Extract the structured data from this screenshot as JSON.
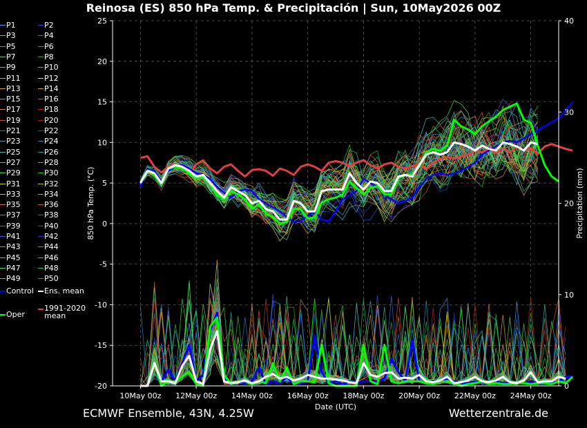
{
  "title": "Reinosa  (ES)  850 hPa Temp. & Precipitación | Sun, 10May2026 00Z",
  "footer": {
    "left": "ECMWF Ensemble, 43N, 4.25W",
    "right": "Wetterzentrale.de"
  },
  "legend": {
    "members": [
      "P1",
      "P2",
      "P3",
      "P4",
      "P5",
      "P6",
      "P7",
      "P8",
      "P9",
      "P10",
      "P11",
      "P12",
      "P13",
      "P14",
      "P15",
      "P16",
      "P17",
      "P18",
      "P19",
      "P20",
      "P21",
      "P22",
      "P23",
      "P24",
      "P25",
      "P26",
      "P27",
      "P28",
      "P29",
      "P30",
      "P31",
      "P32",
      "P33",
      "P34",
      "P35",
      "P36",
      "P37",
      "P38",
      "P39",
      "P40",
      "P41",
      "P42",
      "P43",
      "P44",
      "P45",
      "P46",
      "P47",
      "P48",
      "P49",
      "P50"
    ],
    "member_colors": [
      "#3fa0ff",
      "#3050ff",
      "#40c8c8",
      "#3080c0",
      "#20c8a0",
      "#20c040",
      "#60d060",
      "#40b040",
      "#40e040",
      "#30d030",
      "#c0c020",
      "#e0e040",
      "#e0a020",
      "#d0a040",
      "#e08030",
      "#d06020",
      "#e07050",
      "#c03020",
      "#d05030",
      "#b02020",
      "#3070e0",
      "#2050d0",
      "#40a0c0",
      "#3090b0",
      "#40c0c0",
      "#20b0a0",
      "#50d080",
      "#30c060",
      "#40e050",
      "#20d020",
      "#d0d030",
      "#c0c020",
      "#e0b030",
      "#d0a020",
      "#e07040",
      "#d06030",
      "#e06050",
      "#c04030",
      "#d04040",
      "#b03030",
      "#3060e0",
      "#2040c0",
      "#40b0d0",
      "#30a0c0",
      "#40d0b0",
      "#20c090",
      "#50e070",
      "#30d050",
      "#40e040",
      "#20c020"
    ],
    "control": "Control",
    "ens_mean": "Ens. mean",
    "oper": "Oper",
    "clim_mean_line1": "1991-2020",
    "clim_mean_line2": "mean"
  },
  "colors": {
    "control": "#0000ff",
    "ens_mean": "#ffffff",
    "oper": "#00ff00",
    "clim_mean": "#e04040",
    "grid": "#666666",
    "background": "#000000"
  },
  "chart_data": {
    "type": "line",
    "xlabel": "Date (UTC)",
    "ylabel_left": "850 hPa Temp. (°C)",
    "ylabel_right": "Precipitation (mm)",
    "x_ticks": [
      "10May 00z",
      "12May 00z",
      "14May 00z",
      "16May 00z",
      "18May 00z",
      "20May 00z",
      "22May 00z",
      "24May 00z"
    ],
    "x_tick_days": [
      0,
      2,
      4,
      6,
      8,
      10,
      12,
      14
    ],
    "x_range_days": [
      -1.0,
      15.0
    ],
    "ylim_left": [
      -20,
      25
    ],
    "yticks_left": [
      -20,
      -15,
      -10,
      -5,
      0,
      5,
      10,
      15,
      20,
      25
    ],
    "ylim_right": [
      0,
      40
    ],
    "yticks_right": [
      0,
      10,
      20,
      30,
      40
    ],
    "grid": true,
    "step_days": 0.25,
    "temperature": {
      "control": [
        4.5,
        6.8,
        6.5,
        5.2,
        6.5,
        7.0,
        7.2,
        6.8,
        6.2,
        6.0,
        5.5,
        4.5,
        3.8,
        3.2,
        4.0,
        4.2,
        4.0,
        3.0,
        2.5,
        2.0,
        1.5,
        0.8,
        0.2,
        0.3,
        1.0,
        1.5,
        0.5,
        0.3,
        1.5,
        3.0,
        3.5,
        4.0,
        5.5,
        5.0,
        4.5,
        3.5,
        3.0,
        2.5,
        2.8,
        3.2,
        4.5,
        5.5,
        6.0,
        6.2,
        6.0,
        6.2,
        6.5,
        7.0,
        7.5,
        8.5,
        9.0,
        9.5,
        10.0,
        10.2,
        10.0,
        10.5,
        11.0,
        11.5,
        12.0,
        12.5,
        13.0,
        14.0,
        15.0
      ],
      "ens_mean": [
        5.0,
        6.5,
        6.2,
        5.0,
        6.8,
        7.2,
        7.0,
        6.5,
        5.8,
        6.0,
        5.0,
        4.0,
        3.2,
        4.5,
        4.0,
        3.5,
        2.5,
        2.8,
        1.8,
        1.5,
        0.5,
        0.5,
        2.8,
        2.5,
        1.5,
        1.5,
        4.0,
        4.2,
        4.2,
        4.2,
        6.2,
        5.0,
        4.2,
        5.2,
        5.0,
        4.0,
        4.0,
        5.8,
        6.0,
        5.8,
        7.2,
        8.5,
        8.8,
        8.5,
        8.8,
        10.0,
        9.8,
        9.5,
        9.0,
        9.6,
        9.2,
        9.0,
        10.0,
        9.8,
        9.5,
        9.0,
        10.0,
        9.8
      ],
      "oper": [
        5.0,
        6.5,
        6.0,
        5.0,
        6.8,
        7.0,
        6.8,
        6.2,
        5.6,
        5.8,
        4.8,
        3.5,
        3.0,
        4.0,
        3.6,
        3.0,
        1.8,
        2.4,
        1.2,
        0.8,
        0.0,
        0.2,
        1.8,
        1.8,
        0.6,
        0.8,
        2.6,
        3.0,
        3.2,
        3.6,
        5.2,
        4.4,
        3.6,
        4.4,
        4.6,
        3.6,
        3.6,
        5.6,
        6.0,
        6.0,
        7.0,
        8.8,
        9.2,
        9.0,
        9.6,
        12.8,
        12.0,
        11.6,
        11.0,
        12.0,
        12.6,
        13.2,
        14.0,
        14.4,
        14.8,
        12.8,
        12.4,
        9.6,
        7.2,
        5.8,
        5.2
      ],
      "clim_mean": [
        8.1,
        8.3,
        7.0,
        6.3,
        7.0,
        7.3,
        7.0,
        6.2,
        7.3,
        7.8,
        6.8,
        6.2,
        7.0,
        7.3,
        6.5,
        5.8,
        6.6,
        6.7,
        6.5,
        5.9,
        6.8,
        6.5,
        6.0,
        7.0,
        7.3,
        7.0,
        6.5,
        7.5,
        7.7,
        7.5,
        7.1,
        7.5,
        7.8,
        7.2,
        6.8,
        7.3,
        7.5,
        7.0,
        6.8,
        7.1,
        7.3,
        6.7,
        7.5,
        8.0,
        8.2,
        8.0,
        8.3,
        8.5,
        9.0,
        8.8,
        9.2,
        8.7,
        9.3,
        8.8,
        9.5,
        9.0,
        9.3,
        8.6,
        9.5,
        9.8,
        9.5,
        9.2,
        9.0
      ]
    },
    "precipitation": {
      "control": [
        0,
        0,
        2.5,
        0.5,
        1.8,
        0.5,
        2.5,
        4.5,
        0.5,
        1.2,
        6.0,
        8.0,
        0.8,
        0.2,
        0.5,
        0.3,
        0.5,
        2.0,
        0.2,
        0.5,
        0.3,
        1.0,
        0.2,
        0.3,
        0.5,
        5.5,
        1.5,
        0.3,
        0.5,
        0.2,
        0.5,
        0.3,
        0.5,
        0.5,
        0.5,
        0.8,
        3.0,
        1.5,
        0.5,
        5.0,
        0.5,
        0.3,
        0.5,
        0.5,
        0.8,
        0.5,
        0.3,
        0.3,
        0.5,
        0.4,
        0.3,
        0.5,
        0.3,
        0.3,
        0.3,
        0.3,
        0.5,
        0.3,
        0.2,
        0.3,
        0.5,
        1.0,
        1.0
      ],
      "ens_mean": [
        0,
        0,
        2.5,
        0.5,
        0.5,
        0.3,
        2.2,
        3.3,
        0.5,
        0.2,
        4.0,
        6.0,
        0.5,
        0.3,
        0.4,
        0.6,
        0.3,
        0.5,
        1.0,
        1.3,
        0.8,
        1.0,
        0.6,
        0.8,
        1.2,
        1.0,
        0.8,
        0.8,
        0.7,
        0.6,
        0.4,
        0.3,
        2.5,
        1.2,
        1.0,
        1.4,
        1.5,
        0.8,
        0.9,
        0.8,
        1.2,
        0.5,
        0.4,
        0.6,
        1.0,
        0.3,
        0.4,
        0.6,
        1.0,
        0.5,
        0.4,
        0.6,
        1.0,
        0.4,
        0.3,
        0.6,
        1.5,
        0.4,
        0.5,
        0.5,
        1.0,
        0.8
      ],
      "oper": [
        0,
        0,
        2.5,
        0.0,
        0.5,
        0.5,
        1.0,
        1.5,
        0.2,
        0.0,
        6.5,
        7.5,
        1.2,
        0.2,
        0.5,
        0.5,
        0.2,
        0.5,
        0.3,
        2.5,
        0.5,
        2.0,
        0.2,
        0.5,
        0.5,
        0.4,
        4.5,
        0.3,
        0.0,
        0.0,
        0.0,
        0.0,
        4.5,
        0.5,
        0.2,
        4.5,
        0.5,
        0.3,
        0.5,
        0.5,
        0.5,
        0.3,
        0.2,
        0.5,
        0.5,
        0.3,
        0.0,
        0.2,
        0.3,
        0.5,
        0.2,
        0.3,
        0.2,
        0.2,
        0.3,
        0.3,
        0.2,
        0.3,
        0.3,
        0.2,
        0.5,
        0.3,
        1.0
      ]
    }
  }
}
